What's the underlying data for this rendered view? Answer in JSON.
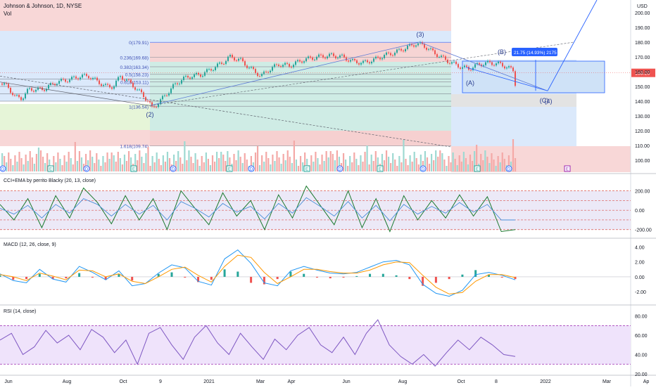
{
  "header": {
    "title": "Johnson & Johnson, 1D, NYSE",
    "vol_label": "Vol",
    "currency": "USD"
  },
  "colors": {
    "up": "#26a69a",
    "down": "#ef5350",
    "blue": "#2962ff",
    "fib_label": "#3f51b5"
  },
  "chart_data": [
    {
      "type": "candlestick",
      "title": "Johnson & Johnson, 1D, NYSE",
      "y_ticks": [
        200,
        190,
        180,
        170,
        160,
        150,
        140,
        130,
        120,
        110,
        100
      ],
      "ylim": [
        90,
        207
      ],
      "last_price": "159.20",
      "x_ticks": [
        "Jun",
        "Aug",
        "Oct",
        "9",
        "2021",
        "Mar",
        "Apr",
        "Jun",
        "Aug",
        "Oct",
        "8",
        "2022",
        "Mar",
        "Ap"
      ],
      "price_path": [
        [
          0,
          152
        ],
        [
          10,
          150
        ],
        [
          20,
          143
        ],
        [
          30,
          142
        ],
        [
          40,
          148
        ],
        [
          60,
          148
        ],
        [
          80,
          153
        ],
        [
          100,
          155
        ],
        [
          115,
          157
        ],
        [
          125,
          157
        ],
        [
          135,
          154
        ],
        [
          150,
          150
        ],
        [
          160,
          150
        ],
        [
          170,
          157
        ],
        [
          185,
          152
        ],
        [
          200,
          145
        ],
        [
          210,
          140
        ],
        [
          215,
          135
        ],
        [
          222,
          138
        ],
        [
          232,
          143
        ],
        [
          245,
          150
        ],
        [
          258,
          155
        ],
        [
          270,
          157
        ],
        [
          285,
          158
        ],
        [
          300,
          162
        ],
        [
          315,
          166
        ],
        [
          325,
          170
        ],
        [
          340,
          168
        ],
        [
          355,
          162
        ],
        [
          370,
          157
        ],
        [
          380,
          161
        ],
        [
          395,
          165
        ],
        [
          410,
          164
        ],
        [
          430,
          168
        ],
        [
          450,
          170
        ],
        [
          470,
          171
        ],
        [
          485,
          170
        ],
        [
          500,
          167
        ],
        [
          515,
          166
        ],
        [
          530,
          168
        ],
        [
          545,
          171
        ],
        [
          560,
          173
        ],
        [
          575,
          176
        ],
        [
          590,
          179
        ],
        [
          600,
          178
        ],
        [
          612,
          174
        ],
        [
          625,
          170
        ],
        [
          640,
          166
        ],
        [
          655,
          163
        ],
        [
          665,
          162
        ],
        [
          680,
          165
        ],
        [
          695,
          166
        ],
        [
          710,
          165
        ],
        [
          720,
          163
        ],
        [
          730,
          160
        ]
      ],
      "fib_levels": [
        {
          "label": "0(179.91)",
          "value": 179.91
        },
        {
          "label": "0.236(169.68)",
          "value": 169.68
        },
        {
          "label": "0.382(163.34)",
          "value": 163.34
        },
        {
          "label": "0.5(158.23)",
          "value": 158.23
        },
        {
          "label": "0.618(153.11)",
          "value": 153.11
        },
        {
          "label": "1(136.54)",
          "value": 136.54
        },
        {
          "label": "1.618(109.74)",
          "value": 109.74
        }
      ],
      "wave_labels": [
        "(2)",
        "(3)",
        "(A)",
        "(B)",
        "(C)",
        "(4)"
      ],
      "measure_label": "21.75 (14.93%) 2175",
      "event_markers": [
        "D",
        "E",
        "D",
        "E",
        "D",
        "E",
        "D",
        "E",
        "D",
        "E",
        "D",
        "E",
        "D",
        "E"
      ]
    },
    {
      "type": "line",
      "title": "CCI+EMA by perrito Blacky (20, 13, close)",
      "y_ticks": [
        "200.00",
        "0.00",
        "-200.00"
      ],
      "ylim": [
        -260,
        270
      ],
      "series": [
        {
          "values": [
            60,
            -100,
            120,
            -180,
            150,
            -80,
            230,
            80,
            -140,
            150,
            -100,
            120,
            -200,
            200,
            20,
            -150,
            180,
            -60,
            100,
            -200,
            160,
            -80,
            250,
            50,
            -150,
            200,
            -180,
            120,
            -220,
            150,
            -100,
            100,
            -80,
            160,
            -60,
            140,
            -220,
            -200
          ]
        },
        {
          "values": [
            20,
            -40,
            50,
            -80,
            60,
            -30,
            120,
            60,
            -60,
            60,
            -40,
            50,
            -100,
            90,
            20,
            -70,
            70,
            -20,
            40,
            -90,
            70,
            -30,
            130,
            40,
            -60,
            90,
            -80,
            50,
            -110,
            60,
            -40,
            40,
            -30,
            80,
            -20,
            60,
            -100,
            -100
          ]
        }
      ]
    },
    {
      "type": "bar",
      "title": "MACD (12, 26, close, 9)",
      "y_ticks": [
        "4.00",
        "2.00",
        "0.00",
        "-2.00"
      ],
      "ylim": [
        -3.2,
        4.6
      ],
      "series": [
        {
          "values": [
            0.4,
            -0.5,
            -0.8,
            1.0,
            -0.3,
            -0.7,
            1.4,
            0.6,
            -0.4,
            0.8,
            -1.2,
            -0.9,
            0.5,
            1.6,
            1.2,
            -0.6,
            -1.1,
            2.4,
            3.6,
            1.8,
            -0.8,
            -1.2,
            0.8,
            1.4,
            0.9,
            0.5,
            0.4,
            0.6,
            1.3,
            2.0,
            2.2,
            1.6,
            -1.0,
            -2.2,
            -2.6,
            -1.8,
            0.3,
            0.6,
            0.2,
            -0.4
          ]
        },
        {
          "values": [
            0.3,
            0.0,
            -0.5,
            0.5,
            0.1,
            -0.4,
            0.9,
            0.8,
            0.0,
            0.4,
            -0.6,
            -0.9,
            0.0,
            1.0,
            1.3,
            0.2,
            -0.7,
            1.4,
            2.9,
            2.6,
            0.6,
            -0.9,
            0.0,
            1.0,
            1.0,
            0.7,
            0.5,
            0.5,
            0.9,
            1.6,
            2.0,
            1.9,
            0.2,
            -1.4,
            -2.3,
            -2.1,
            -0.6,
            0.3,
            0.3,
            -0.1
          ]
        },
        {
          "values": [
            0.2,
            -0.4,
            -0.3,
            0.4,
            -0.3,
            -0.2,
            0.5,
            -0.1,
            -0.4,
            0.4,
            -0.5,
            0.0,
            0.4,
            0.6,
            -0.1,
            -0.7,
            -0.4,
            1.0,
            0.7,
            -0.8,
            -1.0,
            -0.3,
            0.7,
            0.4,
            -0.1,
            -0.2,
            -0.1,
            0.1,
            0.4,
            0.4,
            0.2,
            -0.3,
            -1.2,
            -0.8,
            -0.3,
            0.3,
            0.9,
            0.3,
            -0.1,
            -0.3
          ]
        }
      ]
    },
    {
      "type": "line",
      "title": "RSI (14, close)",
      "y_ticks": [
        "80.00",
        "60.00",
        "40.00",
        "20.00"
      ],
      "ylim": [
        20,
        87
      ],
      "series": [
        {
          "values": [
            55,
            62,
            40,
            48,
            65,
            52,
            60,
            45,
            66,
            58,
            42,
            55,
            30,
            62,
            68,
            50,
            35,
            58,
            70,
            52,
            40,
            62,
            48,
            35,
            56,
            45,
            60,
            68,
            50,
            42,
            58,
            40,
            62,
            76,
            50,
            38,
            30,
            40,
            28,
            42,
            55,
            45,
            58,
            50,
            40,
            38
          ]
        }
      ]
    }
  ]
}
